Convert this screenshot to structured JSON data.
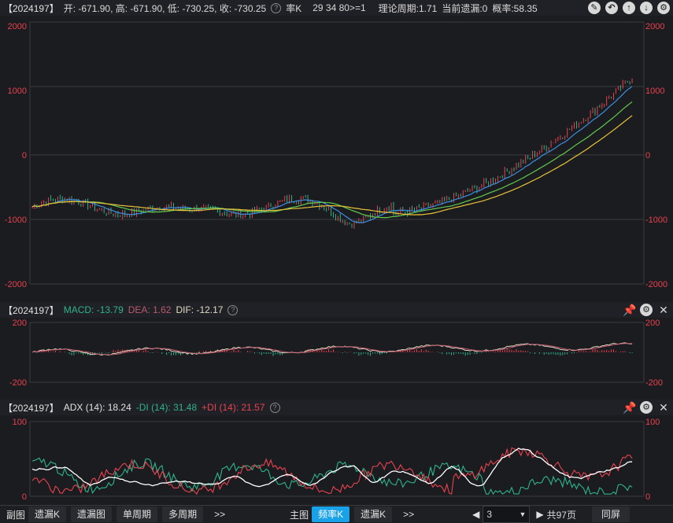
{
  "main": {
    "code": "【2024197】",
    "ohlc": "开: -671.90, 高: -671.90, 低: -730.25, 收: -730.25",
    "kind": "率K",
    "params": "29 34 80>=1",
    "cycle": "理论周期:1.71",
    "miss": "当前遗漏:0",
    "prob": "概率:58.35",
    "y_ticks": [
      "2000",
      "1000",
      "0",
      "-1000",
      "-2000"
    ]
  },
  "macd": {
    "code": "【2024197】",
    "macd": "MACD: -13.79",
    "dea": "DEA: 1.62",
    "dif": "DIF: -12.17",
    "y_ticks": [
      "200",
      "-200"
    ]
  },
  "adx": {
    "code": "【2024197】",
    "adx": "ADX (14): 18.24",
    "mdi": "-DI (14): 31.48",
    "pdi": "+DI (14): 21.57",
    "y_ticks": [
      "100",
      "0"
    ]
  },
  "bottom": {
    "tabs_left": [
      "副图",
      "遗漏K",
      "遗漏图",
      "单周期",
      "多周期"
    ],
    "more1": ">>",
    "tabs_mid": [
      "主图",
      "频率K",
      "遗漏K"
    ],
    "more2": ">>",
    "page_value": "3",
    "page_total": "共97页",
    "sync": "同屏"
  },
  "colors": {
    "up": "#e8424f",
    "down": "#2fb38a",
    "ma1": "#3a8fe0",
    "ma2": "#62c94a",
    "ma3": "#e8c23a",
    "grid": "#3a3b40",
    "active_tab": "#1aa2e8"
  }
}
